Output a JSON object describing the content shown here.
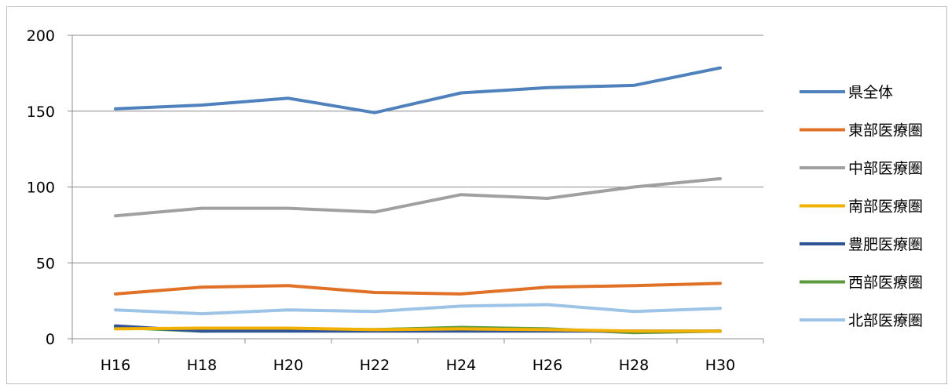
{
  "chart_data": {
    "type": "line",
    "title": "",
    "xlabel": "",
    "ylabel": "",
    "categories": [
      "H16",
      "H18",
      "H20",
      "H22",
      "H24",
      "H26",
      "H28",
      "H30"
    ],
    "ylim": [
      0,
      200
    ],
    "yticks": [
      "0",
      "50",
      "100",
      "150",
      "200"
    ],
    "grid": true,
    "legend_position": "right",
    "series": [
      {
        "name": "県全体",
        "color": "#4f81bd",
        "values": [
          151.5,
          154,
          158.5,
          149,
          162,
          165.5,
          167,
          178.5
        ]
      },
      {
        "name": "東部医療圏",
        "color": "#e07127",
        "values": [
          29.5,
          34,
          35,
          30.5,
          29.5,
          34,
          35,
          36.5
        ]
      },
      {
        "name": "中部医療圏",
        "color": "#a0a0a0",
        "values": [
          81,
          86,
          86,
          83.5,
          95,
          92.5,
          100,
          105.5
        ]
      },
      {
        "name": "南部医療圏",
        "color": "#f2b100",
        "values": [
          6.5,
          7,
          7,
          6,
          6.5,
          6,
          5,
          5
        ]
      },
      {
        "name": "豊肥医療圏",
        "color": "#2f5597",
        "values": [
          8.5,
          5,
          5,
          5,
          5,
          5,
          5,
          5
        ]
      },
      {
        "name": "西部医療圏",
        "color": "#5b9a3d",
        "values": [
          7.5,
          5,
          6,
          6,
          7.5,
          6.5,
          4,
          5
        ]
      },
      {
        "name": "北部医療圏",
        "color": "#9dc3e6",
        "values": [
          19,
          16.5,
          19,
          18,
          21.5,
          22.5,
          18,
          20
        ]
      }
    ]
  }
}
